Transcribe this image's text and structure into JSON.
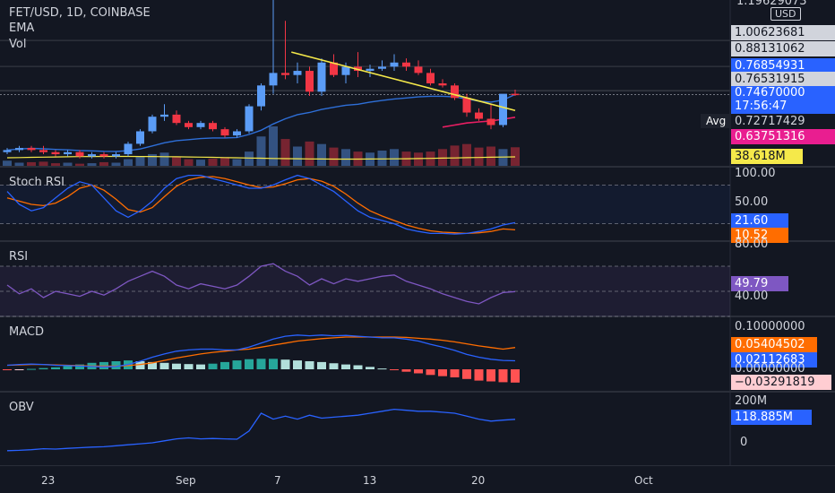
{
  "header": {
    "symbol": "FET/USD, 1D, COINBASE",
    "ema_label": "EMA",
    "vol_label": "Vol"
  },
  "price_axis": {
    "currency": "USD",
    "top_cut": "1.19629073",
    "ticks": [
      "1.00623681",
      "0.88131062",
      "0.76531915"
    ],
    "last_price": "0.76854931",
    "current": "0.74670000",
    "countdown": "17:56:47",
    "avg_label": "Avg",
    "avg_value": "0.72717429",
    "ema_value": "0.63751316",
    "volume_value": "38.618M"
  },
  "panes": {
    "stoch": {
      "label": "Stoch RSI",
      "ticks": [
        "100.00",
        "50.00"
      ],
      "k_value": "21.60",
      "d_value": "10.52"
    },
    "rsi": {
      "label": "RSI",
      "ticks": [
        "80.00",
        "40.00"
      ],
      "value": "49.79"
    },
    "macd": {
      "label": "MACD",
      "ticks": [
        "0.10000000",
        "0.00000000"
      ],
      "signal_value": "0.05404502",
      "macd_value": "0.02112683",
      "hist_value": "−0.03291819"
    },
    "obv": {
      "label": "OBV",
      "ticks": [
        "200M",
        "0"
      ],
      "value": "118.885M"
    }
  },
  "time_axis": [
    "23",
    "Sep",
    "7",
    "13",
    "20",
    "Oct"
  ],
  "colors": {
    "up": "#5b9cf6",
    "down": "#f23645",
    "ema": "#e91e63",
    "stoch_k": "#2962ff",
    "stoch_d": "#ff6d00",
    "rsi": "#7e57c2",
    "trendline": "#f5e94a",
    "obv": "#2962ff"
  },
  "chart_data": {
    "type": "candlestick",
    "symbol": "FET/USD",
    "candles_ohlc": [
      [
        0.47,
        0.49,
        0.46,
        0.48
      ],
      [
        0.48,
        0.5,
        0.47,
        0.49
      ],
      [
        0.49,
        0.5,
        0.47,
        0.48
      ],
      [
        0.48,
        0.5,
        0.46,
        0.47
      ],
      [
        0.47,
        0.48,
        0.45,
        0.46
      ],
      [
        0.46,
        0.48,
        0.45,
        0.47
      ],
      [
        0.47,
        0.48,
        0.44,
        0.45
      ],
      [
        0.45,
        0.47,
        0.44,
        0.46
      ],
      [
        0.46,
        0.47,
        0.44,
        0.45
      ],
      [
        0.45,
        0.47,
        0.44,
        0.46
      ],
      [
        0.46,
        0.52,
        0.45,
        0.51
      ],
      [
        0.51,
        0.58,
        0.5,
        0.57
      ],
      [
        0.57,
        0.65,
        0.56,
        0.64
      ],
      [
        0.64,
        0.7,
        0.62,
        0.65
      ],
      [
        0.65,
        0.67,
        0.6,
        0.61
      ],
      [
        0.61,
        0.62,
        0.58,
        0.59
      ],
      [
        0.59,
        0.62,
        0.58,
        0.61
      ],
      [
        0.61,
        0.62,
        0.57,
        0.58
      ],
      [
        0.58,
        0.59,
        0.54,
        0.55
      ],
      [
        0.55,
        0.58,
        0.54,
        0.57
      ],
      [
        0.57,
        0.7,
        0.56,
        0.69
      ],
      [
        0.69,
        0.8,
        0.67,
        0.79
      ],
      [
        0.79,
        1.2,
        0.75,
        0.85
      ],
      [
        0.85,
        1.1,
        0.82,
        0.84
      ],
      [
        0.84,
        0.9,
        0.8,
        0.86
      ],
      [
        0.86,
        0.88,
        0.74,
        0.76
      ],
      [
        0.76,
        0.92,
        0.74,
        0.9
      ],
      [
        0.9,
        0.94,
        0.83,
        0.84
      ],
      [
        0.84,
        0.9,
        0.8,
        0.88
      ],
      [
        0.88,
        0.95,
        0.83,
        0.86
      ],
      [
        0.86,
        0.89,
        0.83,
        0.87
      ],
      [
        0.87,
        0.91,
        0.86,
        0.88
      ],
      [
        0.88,
        0.94,
        0.86,
        0.9
      ],
      [
        0.9,
        0.92,
        0.86,
        0.88
      ],
      [
        0.88,
        0.91,
        0.84,
        0.85
      ],
      [
        0.85,
        0.87,
        0.79,
        0.8
      ],
      [
        0.8,
        0.82,
        0.78,
        0.79
      ],
      [
        0.79,
        0.8,
        0.72,
        0.73
      ],
      [
        0.73,
        0.75,
        0.64,
        0.66
      ],
      [
        0.66,
        0.68,
        0.62,
        0.63
      ],
      [
        0.63,
        0.7,
        0.58,
        0.6
      ],
      [
        0.6,
        0.74,
        0.59,
        0.75
      ],
      [
        0.75,
        0.77,
        0.74,
        0.7467
      ]
    ],
    "volume_m": [
      12,
      8,
      9,
      10,
      7,
      8,
      6,
      7,
      9,
      8,
      15,
      20,
      25,
      28,
      20,
      15,
      14,
      16,
      18,
      15,
      30,
      60,
      80,
      55,
      40,
      50,
      45,
      38,
      35,
      30,
      28,
      32,
      35,
      30,
      28,
      30,
      35,
      42,
      45,
      38,
      40,
      35,
      38.618
    ],
    "ema": [
      0.48,
      0.485,
      0.488,
      0.486,
      0.483,
      0.481,
      0.478,
      0.476,
      0.474,
      0.473,
      0.477,
      0.485,
      0.5,
      0.515,
      0.525,
      0.53,
      0.535,
      0.538,
      0.538,
      0.54,
      0.555,
      0.575,
      0.605,
      0.63,
      0.65,
      0.66,
      0.675,
      0.685,
      0.695,
      0.7,
      0.71,
      0.718,
      0.725,
      0.73,
      0.735,
      0.738,
      0.738,
      0.735,
      0.725,
      0.715,
      0.71,
      0.72,
      0.7467
    ],
    "ema2": [
      null,
      null,
      null,
      null,
      null,
      null,
      null,
      null,
      null,
      null,
      null,
      null,
      null,
      null,
      null,
      null,
      null,
      null,
      null,
      null,
      null,
      null,
      null,
      null,
      null,
      null,
      null,
      null,
      null,
      null,
      null,
      null,
      null,
      null,
      null,
      null,
      0.59,
      0.6,
      0.61,
      0.615,
      0.62,
      0.628,
      0.6375
    ],
    "trendline": [
      [
        23.5,
        0.95
      ],
      [
        42,
        0.67
      ]
    ],
    "stoch_k": [
      70,
      50,
      40,
      45,
      60,
      75,
      85,
      80,
      60,
      40,
      30,
      40,
      55,
      75,
      90,
      95,
      95,
      90,
      85,
      80,
      75,
      75,
      80,
      88,
      95,
      90,
      80,
      70,
      55,
      40,
      30,
      25,
      20,
      12,
      8,
      5,
      5,
      4,
      5,
      8,
      12,
      18,
      21.6
    ],
    "stoch_d": [
      60,
      55,
      50,
      48,
      52,
      62,
      75,
      80,
      72,
      58,
      42,
      38,
      45,
      62,
      78,
      88,
      92,
      93,
      90,
      85,
      80,
      76,
      77,
      82,
      88,
      90,
      86,
      78,
      66,
      52,
      40,
      32,
      25,
      18,
      13,
      9,
      7,
      6,
      5,
      6,
      8,
      12,
      10.52
    ],
    "rsi": [
      55,
      48,
      52,
      45,
      50,
      48,
      46,
      50,
      47,
      52,
      58,
      62,
      66,
      62,
      55,
      52,
      56,
      54,
      52,
      55,
      62,
      70,
      72,
      66,
      62,
      55,
      60,
      56,
      60,
      58,
      60,
      62,
      63,
      58,
      55,
      52,
      48,
      45,
      42,
      40,
      45,
      49,
      49.79
    ],
    "macd": [
      0.01,
      0.012,
      0.013,
      0.012,
      0.01,
      0.009,
      0.008,
      0.007,
      0.006,
      0.007,
      0.012,
      0.02,
      0.03,
      0.038,
      0.045,
      0.048,
      0.05,
      0.05,
      0.048,
      0.048,
      0.055,
      0.065,
      0.075,
      0.082,
      0.085,
      0.083,
      0.085,
      0.083,
      0.084,
      0.082,
      0.08,
      0.078,
      0.078,
      0.075,
      0.07,
      0.062,
      0.055,
      0.047,
      0.037,
      0.03,
      0.025,
      0.022,
      0.02112683
    ],
    "macd_signal": [
      0.01,
      0.011,
      0.012,
      0.012,
      0.011,
      0.01,
      0.009,
      0.008,
      0.008,
      0.008,
      0.009,
      0.012,
      0.016,
      0.022,
      0.028,
      0.033,
      0.038,
      0.042,
      0.045,
      0.048,
      0.05,
      0.055,
      0.06,
      0.065,
      0.07,
      0.073,
      0.076,
      0.078,
      0.08,
      0.08,
      0.08,
      0.08,
      0.08,
      0.079,
      0.077,
      0.075,
      0.072,
      0.068,
      0.063,
      0.058,
      0.054,
      0.05,
      0.05404502
    ],
    "macd_hist": [
      -0.002,
      -0.001,
      0.001,
      0.003,
      0.005,
      0.008,
      0.012,
      0.016,
      0.018,
      0.02,
      0.022,
      0.02,
      0.018,
      0.016,
      0.014,
      0.013,
      0.012,
      0.014,
      0.018,
      0.022,
      0.025,
      0.026,
      0.026,
      0.024,
      0.022,
      0.02,
      0.018,
      0.015,
      0.012,
      0.01,
      0.006,
      0.002,
      -0.002,
      -0.006,
      -0.01,
      -0.014,
      -0.017,
      -0.02,
      -0.024,
      -0.028,
      -0.03,
      -0.032,
      -0.03291819
    ],
    "obv_m": [
      -40,
      -38,
      -35,
      -30,
      -32,
      -28,
      -25,
      -22,
      -20,
      -15,
      -10,
      -5,
      0,
      10,
      20,
      25,
      20,
      22,
      20,
      18,
      60,
      150,
      120,
      135,
      120,
      140,
      125,
      130,
      135,
      140,
      150,
      160,
      170,
      165,
      160,
      160,
      155,
      150,
      135,
      120,
      110,
      115,
      118.885
    ],
    "ylim_price": [
      0.4,
      1.2
    ]
  }
}
